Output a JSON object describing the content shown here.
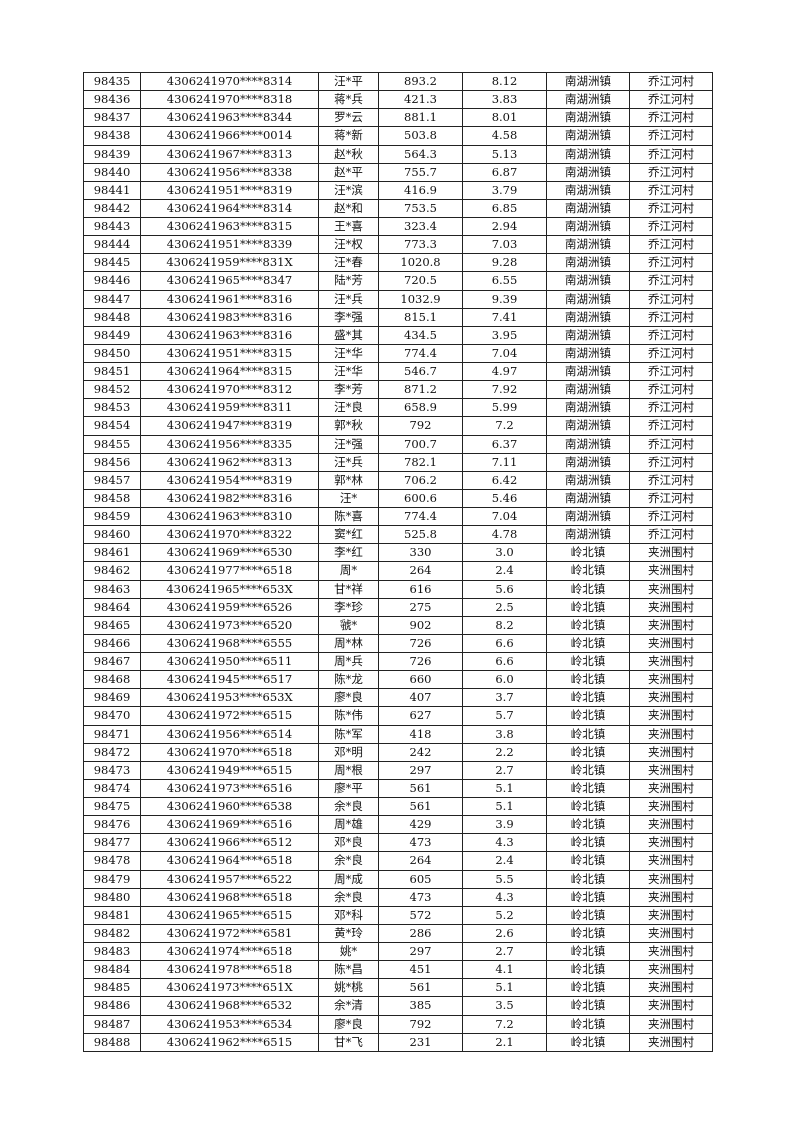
{
  "table": {
    "rows": [
      [
        "98435",
        "4306241970****8314",
        "汪*平",
        "893.2",
        "8.12",
        "南湖洲镇",
        "乔江河村"
      ],
      [
        "98436",
        "4306241970****8318",
        "蒋*兵",
        "421.3",
        "3.83",
        "南湖洲镇",
        "乔江河村"
      ],
      [
        "98437",
        "4306241963****8344",
        "罗*云",
        "881.1",
        "8.01",
        "南湖洲镇",
        "乔江河村"
      ],
      [
        "98438",
        "4306241966****0014",
        "蒋*新",
        "503.8",
        "4.58",
        "南湖洲镇",
        "乔江河村"
      ],
      [
        "98439",
        "4306241967****8313",
        "赵*秋",
        "564.3",
        "5.13",
        "南湖洲镇",
        "乔江河村"
      ],
      [
        "98440",
        "4306241956****8338",
        "赵*平",
        "755.7",
        "6.87",
        "南湖洲镇",
        "乔江河村"
      ],
      [
        "98441",
        "4306241951****8319",
        "汪*滨",
        "416.9",
        "3.79",
        "南湖洲镇",
        "乔江河村"
      ],
      [
        "98442",
        "4306241964****8314",
        "赵*和",
        "753.5",
        "6.85",
        "南湖洲镇",
        "乔江河村"
      ],
      [
        "98443",
        "4306241963****8315",
        "王*喜",
        "323.4",
        "2.94",
        "南湖洲镇",
        "乔江河村"
      ],
      [
        "98444",
        "4306241951****8339",
        "汪*权",
        "773.3",
        "7.03",
        "南湖洲镇",
        "乔江河村"
      ],
      [
        "98445",
        "4306241959****831X",
        "汪*春",
        "1020.8",
        "9.28",
        "南湖洲镇",
        "乔江河村"
      ],
      [
        "98446",
        "4306241965****8347",
        "陆*芳",
        "720.5",
        "6.55",
        "南湖洲镇",
        "乔江河村"
      ],
      [
        "98447",
        "4306241961****8316",
        "汪*兵",
        "1032.9",
        "9.39",
        "南湖洲镇",
        "乔江河村"
      ],
      [
        "98448",
        "4306241983****8316",
        "李*强",
        "815.1",
        "7.41",
        "南湖洲镇",
        "乔江河村"
      ],
      [
        "98449",
        "4306241963****8316",
        "盛*其",
        "434.5",
        "3.95",
        "南湖洲镇",
        "乔江河村"
      ],
      [
        "98450",
        "4306241951****8315",
        "汪*华",
        "774.4",
        "7.04",
        "南湖洲镇",
        "乔江河村"
      ],
      [
        "98451",
        "4306241964****8315",
        "汪*华",
        "546.7",
        "4.97",
        "南湖洲镇",
        "乔江河村"
      ],
      [
        "98452",
        "4306241970****8312",
        "李*芳",
        "871.2",
        "7.92",
        "南湖洲镇",
        "乔江河村"
      ],
      [
        "98453",
        "4306241959****8311",
        "汪*良",
        "658.9",
        "5.99",
        "南湖洲镇",
        "乔江河村"
      ],
      [
        "98454",
        "4306241947****8319",
        "郭*秋",
        "792",
        "7.2",
        "南湖洲镇",
        "乔江河村"
      ],
      [
        "98455",
        "4306241956****8335",
        "汪*强",
        "700.7",
        "6.37",
        "南湖洲镇",
        "乔江河村"
      ],
      [
        "98456",
        "4306241962****8313",
        "汪*兵",
        "782.1",
        "7.11",
        "南湖洲镇",
        "乔江河村"
      ],
      [
        "98457",
        "4306241954****8319",
        "郭*林",
        "706.2",
        "6.42",
        "南湖洲镇",
        "乔江河村"
      ],
      [
        "98458",
        "4306241982****8316",
        "汪*",
        "600.6",
        "5.46",
        "南湖洲镇",
        "乔江河村"
      ],
      [
        "98459",
        "4306241963****8310",
        "陈*喜",
        "774.4",
        "7.04",
        "南湖洲镇",
        "乔江河村"
      ],
      [
        "98460",
        "4306241970****8322",
        "窦*红",
        "525.8",
        "4.78",
        "南湖洲镇",
        "乔江河村"
      ],
      [
        "98461",
        "4306241969****6530",
        "李*红",
        "330",
        "3.0",
        "岭北镇",
        "夹洲围村"
      ],
      [
        "98462",
        "4306241977****6518",
        "周*",
        "264",
        "2.4",
        "岭北镇",
        "夹洲围村"
      ],
      [
        "98463",
        "4306241965****653X",
        "甘*祥",
        "616",
        "5.6",
        "岭北镇",
        "夹洲围村"
      ],
      [
        "98464",
        "4306241959****6526",
        "李*珍",
        "275",
        "2.5",
        "岭北镇",
        "夹洲围村"
      ],
      [
        "98465",
        "4306241973****6520",
        "虢*",
        "902",
        "8.2",
        "岭北镇",
        "夹洲围村"
      ],
      [
        "98466",
        "4306241968****6555",
        "周*林",
        "726",
        "6.6",
        "岭北镇",
        "夹洲围村"
      ],
      [
        "98467",
        "4306241950****6511",
        "周*兵",
        "726",
        "6.6",
        "岭北镇",
        "夹洲围村"
      ],
      [
        "98468",
        "4306241945****6517",
        "陈*龙",
        "660",
        "6.0",
        "岭北镇",
        "夹洲围村"
      ],
      [
        "98469",
        "4306241953****653X",
        "廖*良",
        "407",
        "3.7",
        "岭北镇",
        "夹洲围村"
      ],
      [
        "98470",
        "4306241972****6515",
        "陈*伟",
        "627",
        "5.7",
        "岭北镇",
        "夹洲围村"
      ],
      [
        "98471",
        "4306241956****6514",
        "陈*军",
        "418",
        "3.8",
        "岭北镇",
        "夹洲围村"
      ],
      [
        "98472",
        "4306241970****6518",
        "邓*明",
        "242",
        "2.2",
        "岭北镇",
        "夹洲围村"
      ],
      [
        "98473",
        "4306241949****6515",
        "周*根",
        "297",
        "2.7",
        "岭北镇",
        "夹洲围村"
      ],
      [
        "98474",
        "4306241973****6516",
        "廖*平",
        "561",
        "5.1",
        "岭北镇",
        "夹洲围村"
      ],
      [
        "98475",
        "4306241960****6538",
        "余*良",
        "561",
        "5.1",
        "岭北镇",
        "夹洲围村"
      ],
      [
        "98476",
        "4306241969****6516",
        "周*雄",
        "429",
        "3.9",
        "岭北镇",
        "夹洲围村"
      ],
      [
        "98477",
        "4306241966****6512",
        "邓*良",
        "473",
        "4.3",
        "岭北镇",
        "夹洲围村"
      ],
      [
        "98478",
        "4306241964****6518",
        "余*良",
        "264",
        "2.4",
        "岭北镇",
        "夹洲围村"
      ],
      [
        "98479",
        "4306241957****6522",
        "周*成",
        "605",
        "5.5",
        "岭北镇",
        "夹洲围村"
      ],
      [
        "98480",
        "4306241968****6518",
        "余*良",
        "473",
        "4.3",
        "岭北镇",
        "夹洲围村"
      ],
      [
        "98481",
        "4306241965****6515",
        "邓*科",
        "572",
        "5.2",
        "岭北镇",
        "夹洲围村"
      ],
      [
        "98482",
        "4306241972****6581",
        "黄*玲",
        "286",
        "2.6",
        "岭北镇",
        "夹洲围村"
      ],
      [
        "98483",
        "4306241974****6518",
        "姚*",
        "297",
        "2.7",
        "岭北镇",
        "夹洲围村"
      ],
      [
        "98484",
        "4306241978****6518",
        "陈*昌",
        "451",
        "4.1",
        "岭北镇",
        "夹洲围村"
      ],
      [
        "98485",
        "4306241973****651X",
        "姚*桃",
        "561",
        "5.1",
        "岭北镇",
        "夹洲围村"
      ],
      [
        "98486",
        "4306241968****6532",
        "余*清",
        "385",
        "3.5",
        "岭北镇",
        "夹洲围村"
      ],
      [
        "98487",
        "4306241953****6534",
        "廖*良",
        "792",
        "7.2",
        "岭北镇",
        "夹洲围村"
      ],
      [
        "98488",
        "4306241962****6515",
        "甘*飞",
        "231",
        "2.1",
        "岭北镇",
        "夹洲围村"
      ]
    ]
  }
}
